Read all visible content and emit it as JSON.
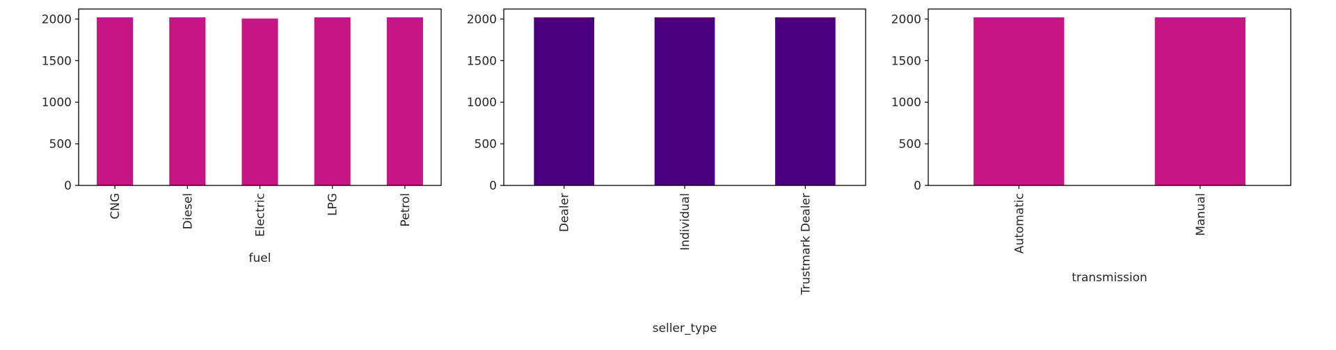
{
  "chart_data": [
    {
      "type": "bar",
      "categories": [
        "CNG",
        "Diesel",
        "Electric",
        "LPG",
        "Petrol"
      ],
      "values": [
        2020,
        2020,
        2006,
        2020,
        2020
      ],
      "xlabel": "fuel",
      "ylabel": "",
      "ylim": [
        0,
        2120
      ],
      "yticks": [
        0,
        500,
        1000,
        1500,
        2000
      ],
      "color": "#c71585",
      "grid": false,
      "legend": "none"
    },
    {
      "type": "bar",
      "categories": [
        "Dealer",
        "Individual",
        "Trustmark Dealer"
      ],
      "values": [
        2020,
        2020,
        2020
      ],
      "xlabel": "seller_type",
      "ylabel": "",
      "ylim": [
        0,
        2120
      ],
      "yticks": [
        0,
        500,
        1000,
        1500,
        2000
      ],
      "color": "#4b0082",
      "grid": false,
      "legend": "none"
    },
    {
      "type": "bar",
      "categories": [
        "Automatic",
        "Manual"
      ],
      "values": [
        2020,
        2020
      ],
      "xlabel": "transmission",
      "ylabel": "",
      "ylim": [
        0,
        2120
      ],
      "yticks": [
        0,
        500,
        1000,
        1500,
        2000
      ],
      "color": "#c71585",
      "grid": false,
      "legend": "none"
    }
  ]
}
